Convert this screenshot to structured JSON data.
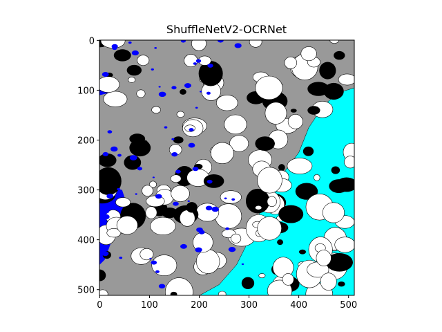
{
  "chart_data": {
    "type": "image",
    "title": "ShuffleNetV2-OCRNet",
    "xlim": [
      -0.5,
      511.5
    ],
    "ylim": [
      511.5,
      -0.5
    ],
    "xticks": [
      0,
      100,
      200,
      300,
      400,
      500
    ],
    "yticks": [
      0,
      100,
      200,
      300,
      400,
      500
    ],
    "colors": [
      "#999999",
      "#ffffff",
      "#000000",
      "#0000ff",
      "#00ffff"
    ]
  }
}
